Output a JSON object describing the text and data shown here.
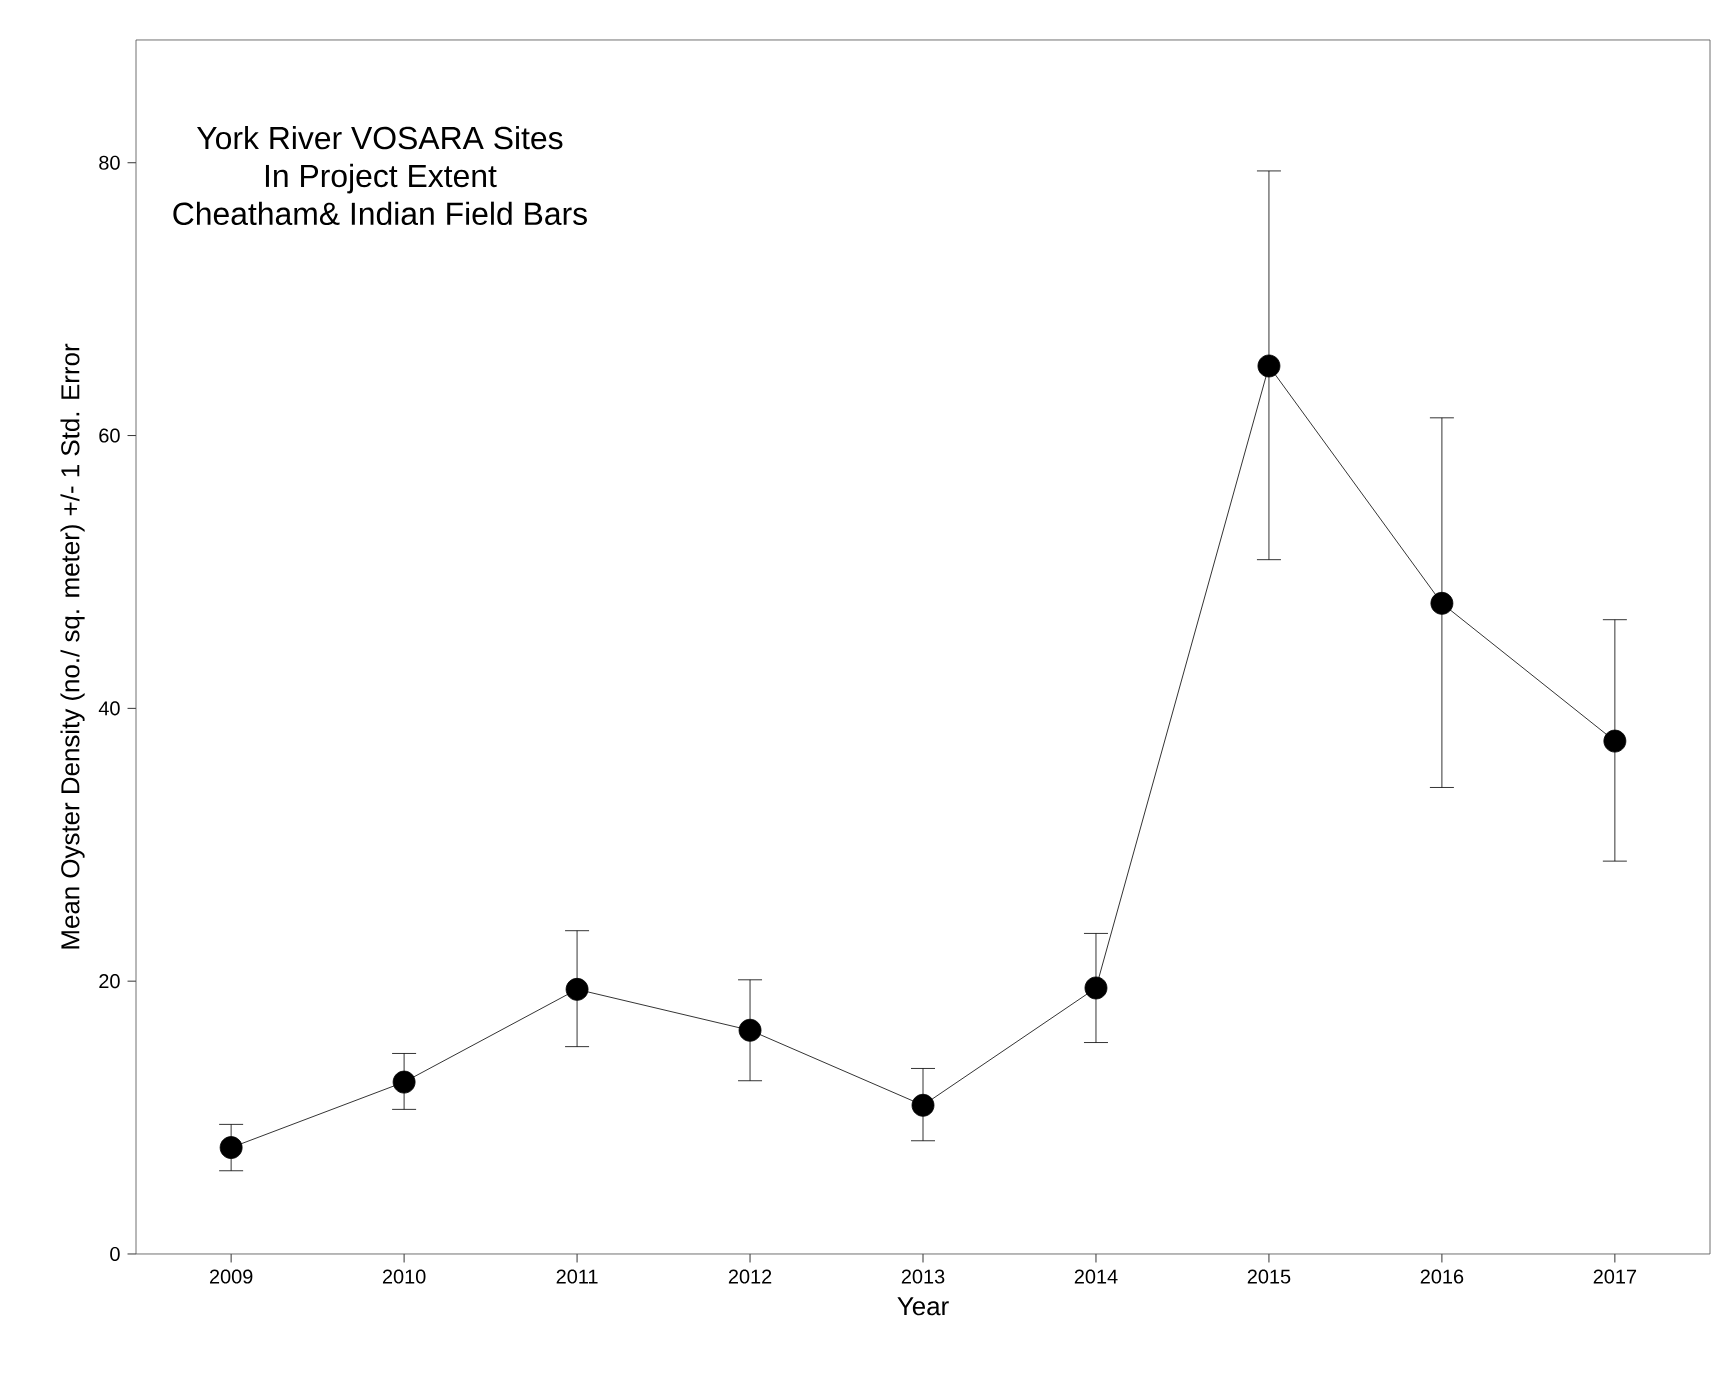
{
  "chart_data": {
    "type": "line",
    "title": "York River VOSARA Sites",
    "subtitle": "In Project Extent",
    "annotations": [
      "Cheatham& Indian Field Bars"
    ],
    "xlabel": "Year",
    "ylabel": "Mean Oyster Density (no./ sq. meter) +/- 1 Std. Error",
    "x": [
      2009,
      2010,
      2011,
      2012,
      2013,
      2014,
      2015,
      2016,
      2017
    ],
    "series": [
      {
        "color": "#000000",
        "values": [
          7.8,
          12.6,
          19.4,
          16.4,
          10.9,
          19.5,
          65.1,
          47.7,
          37.6
        ],
        "errors": [
          [
            6.1,
            9.5
          ],
          [
            10.6,
            14.7
          ],
          [
            15.2,
            23.7
          ],
          [
            12.7,
            20.1
          ],
          [
            8.3,
            13.6
          ],
          [
            15.5,
            23.5
          ],
          [
            50.9,
            79.4
          ],
          [
            34.2,
            61.3
          ],
          [
            28.8,
            46.5
          ]
        ]
      }
    ],
    "xlim": [
      2008.45,
      2017.55
    ],
    "ylim": [
      0,
      89
    ],
    "xticks": [
      2009,
      2010,
      2011,
      2012,
      2013,
      2014,
      2015,
      2016,
      2017
    ],
    "yticks": [
      0,
      20,
      40,
      60,
      80
    ],
    "marker": "circle",
    "line_style": "solid"
  }
}
